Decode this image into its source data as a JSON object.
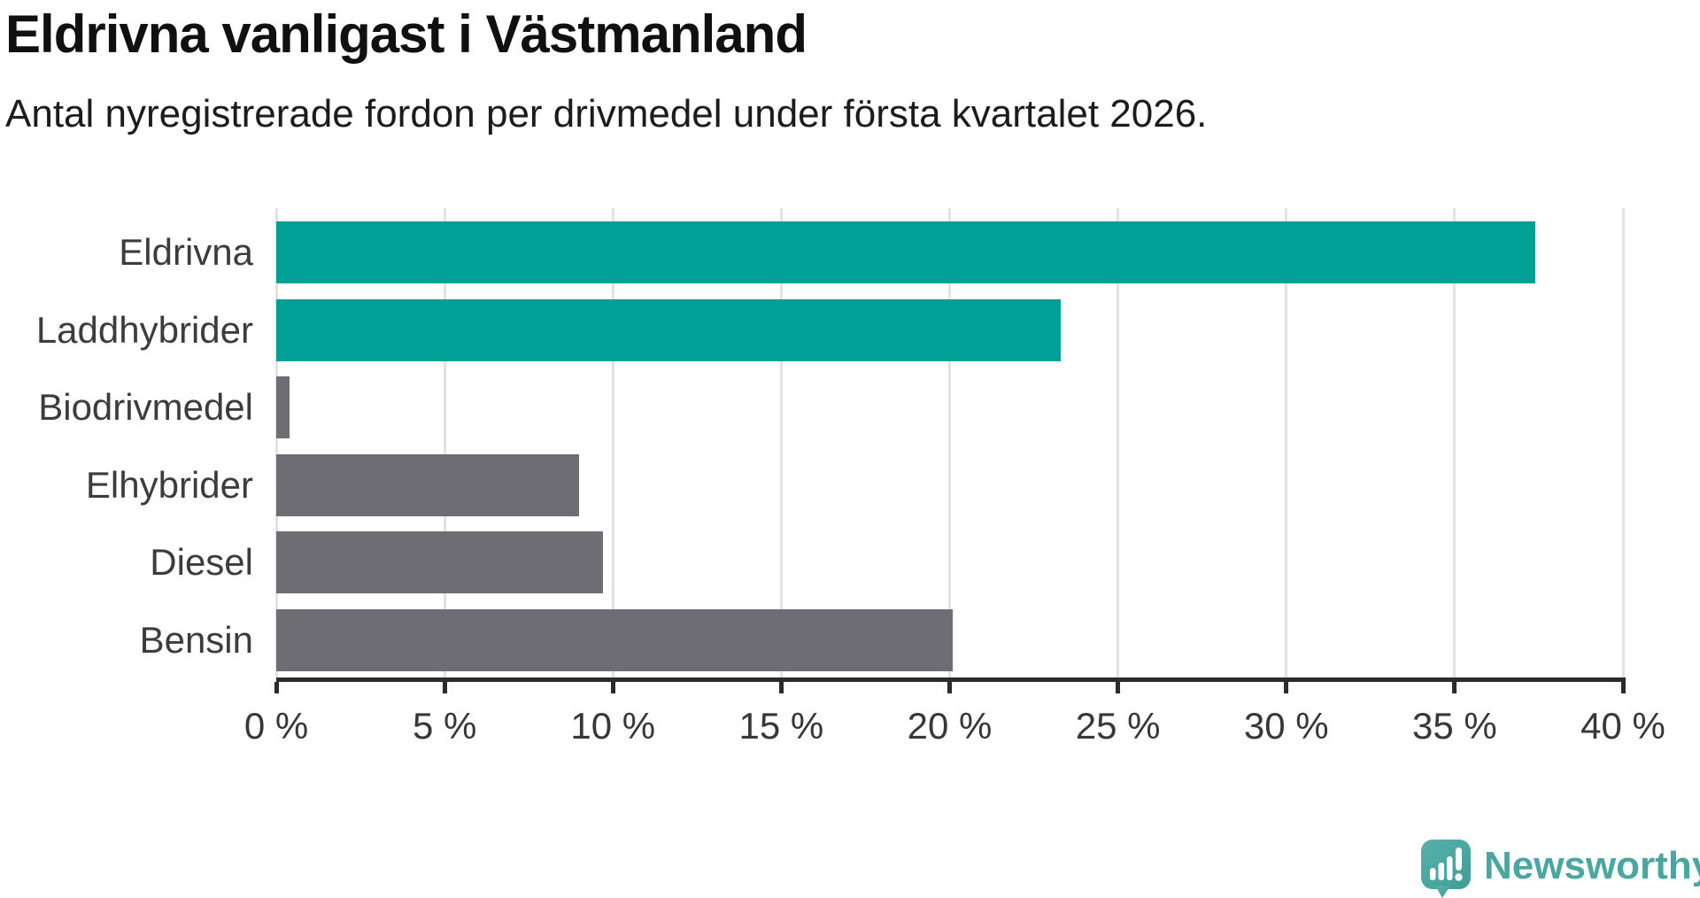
{
  "header": {
    "title": "Eldrivna vanligast i Västmanland",
    "subtitle": "Antal nyregistrerade fordon per drivmedel under första kvartalet 2026."
  },
  "chart_data": {
    "type": "bar",
    "orientation": "horizontal",
    "title": "Eldrivna vanligast i Västmanland",
    "subtitle": "Antal nyregistrerade fordon per drivmedel under första kvartalet 2026.",
    "categories": [
      "Eldrivna",
      "Laddhybrider",
      "Biodrivmedel",
      "Elhybrider",
      "Diesel",
      "Bensin"
    ],
    "values": [
      37.4,
      23.3,
      0.4,
      9.0,
      9.7,
      20.1
    ],
    "unit": "%",
    "colors": [
      "#00A096",
      "#00A096",
      "#6D6D73",
      "#6D6D73",
      "#6D6D73",
      "#6D6D73"
    ],
    "highlight_color": "#00A096",
    "neutral_color": "#6D6D73",
    "xlim": [
      0,
      40
    ],
    "x_ticks": [
      0,
      5,
      10,
      15,
      20,
      25,
      30,
      35,
      40
    ],
    "x_tick_labels": [
      "0 %",
      "5 %",
      "10 %",
      "15 %",
      "20 %",
      "25 %",
      "30 %",
      "35 %",
      "40 %"
    ],
    "grid": true,
    "gridline_color": "#E2E2E2",
    "axis_color": "#2B2B2B",
    "legend": "none"
  },
  "footer": {
    "brand": "Newsworthy",
    "brand_color": "#4AA6A0",
    "logo_icon": "newsworthy-logo-icon"
  }
}
